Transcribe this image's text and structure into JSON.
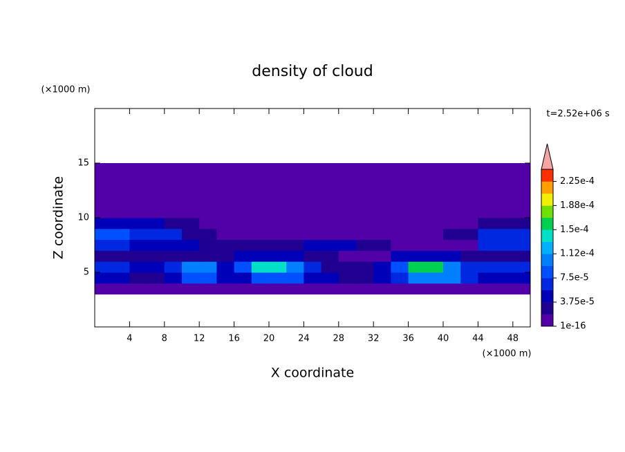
{
  "chart_data": {
    "type": "contour",
    "title": "density of cloud",
    "x_label": "X coordinate",
    "y_label": "Z coordinate",
    "x_unit": "(×1000 m)",
    "y_unit": "(×1000 m)",
    "annotation": "t=2.52e+06 s",
    "xlim": [
      0,
      50
    ],
    "ylim": [
      0,
      20
    ],
    "xticks": [
      4,
      8,
      12,
      16,
      20,
      24,
      28,
      32,
      36,
      40,
      44,
      48
    ],
    "yticks": [
      5,
      10,
      15
    ],
    "x": [
      1,
      3,
      5,
      7,
      9,
      11,
      13,
      15,
      17,
      19,
      21,
      23,
      25,
      27,
      29,
      31,
      33,
      35,
      37,
      39,
      41,
      43,
      45,
      47,
      49
    ],
    "z": [
      3.5,
      4.5,
      5.5,
      6.5,
      7.5,
      8.5,
      9.5,
      10.5,
      11.5,
      12.5,
      13.5,
      14.5
    ],
    "values": [
      [
        1e-05,
        1e-05,
        1e-05,
        1e-05,
        1e-05,
        1e-05,
        1e-05,
        1e-05,
        1e-05,
        1e-05,
        1e-05,
        1e-05,
        1e-05,
        1e-05,
        1e-05,
        1e-05,
        1e-05,
        1e-05,
        1e-05,
        1e-05,
        1e-05,
        1e-05,
        1e-05,
        1e-05,
        1e-05
      ],
      [
        4e-05,
        4e-05,
        3e-05,
        3e-05,
        4e-05,
        8e-05,
        8e-05,
        4e-05,
        5e-05,
        9e-05,
        9e-05,
        9e-05,
        5e-05,
        5e-05,
        2e-05,
        2e-05,
        4e-05,
        7e-05,
        0.0001,
        0.0001,
        0.0001,
        6e-05,
        5e-05,
        5e-05,
        5e-05
      ],
      [
        6e-05,
        6e-05,
        4e-05,
        4e-05,
        6e-05,
        0.00011,
        0.00011,
        5e-05,
        8e-05,
        0.00014,
        0.00014,
        0.00011,
        6e-05,
        2e-05,
        2e-05,
        2e-05,
        5e-05,
        9e-05,
        0.00015,
        0.00015,
        0.0001,
        6e-05,
        6e-05,
        6e-05,
        6e-05
      ],
      [
        2e-05,
        2e-05,
        2e-05,
        2e-05,
        3e-05,
        3e-05,
        3e-05,
        3e-05,
        5e-05,
        5e-05,
        5e-05,
        5e-05,
        3e-05,
        3e-05,
        1e-05,
        1e-05,
        1e-05,
        4e-05,
        4e-05,
        4e-05,
        4e-05,
        3e-05,
        3e-05,
        3e-05,
        3e-05
      ],
      [
        7e-05,
        7e-05,
        4e-05,
        4e-05,
        4e-05,
        4e-05,
        2e-05,
        2e-05,
        3e-05,
        3e-05,
        3e-05,
        3e-05,
        5e-05,
        5e-05,
        5e-05,
        2e-05,
        2e-05,
        1e-05,
        1e-05,
        1e-05,
        1e-05,
        1e-05,
        6e-05,
        6e-05,
        6e-05
      ],
      [
        8e-05,
        8e-05,
        6e-05,
        6e-05,
        6e-05,
        3e-05,
        3e-05,
        1e-05,
        1e-05,
        1e-05,
        1e-05,
        1e-05,
        1e-05,
        1e-05,
        1e-05,
        1e-05,
        1e-05,
        1e-05,
        1e-05,
        1e-05,
        3e-05,
        3e-05,
        7e-05,
        7e-05,
        7e-05
      ],
      [
        4e-05,
        4e-05,
        4e-05,
        4e-05,
        2e-05,
        2e-05,
        1e-05,
        1e-05,
        1e-05,
        1e-05,
        1e-05,
        1e-05,
        1e-05,
        1e-05,
        1e-05,
        1e-05,
        1e-05,
        1e-05,
        1e-05,
        1e-05,
        1e-05,
        1e-05,
        3e-05,
        3e-05,
        3e-05
      ],
      [
        1e-05,
        1e-05,
        1e-05,
        1e-05,
        1e-05,
        1e-05,
        1e-05,
        1e-05,
        1e-05,
        1e-05,
        1e-05,
        1e-05,
        1e-05,
        1e-05,
        1e-05,
        1e-05,
        1e-05,
        1e-05,
        1e-05,
        1e-05,
        1e-05,
        1e-05,
        1e-05,
        1e-05,
        1e-05
      ],
      [
        1e-05,
        1e-05,
        1e-05,
        1e-05,
        1e-05,
        1e-05,
        1e-05,
        1e-05,
        1e-05,
        1e-05,
        1e-05,
        1e-05,
        1e-05,
        1e-05,
        1e-05,
        1e-05,
        1e-05,
        1e-05,
        1e-05,
        1e-05,
        1e-05,
        1e-05,
        1e-05,
        1e-05,
        1e-05
      ],
      [
        1e-05,
        1e-05,
        1e-05,
        1e-05,
        1e-05,
        1e-05,
        1e-05,
        1e-05,
        1e-05,
        1e-05,
        1e-05,
        1e-05,
        1e-05,
        1e-05,
        1e-05,
        1e-05,
        1e-05,
        1e-05,
        1e-05,
        1e-05,
        1e-05,
        1e-05,
        1e-05,
        1e-05,
        1e-05
      ],
      [
        1e-05,
        1e-05,
        1e-05,
        1e-05,
        1e-05,
        1e-05,
        1e-05,
        1e-05,
        1e-05,
        1e-05,
        1e-05,
        1e-05,
        1e-05,
        1e-05,
        1e-05,
        1e-05,
        1e-05,
        1e-05,
        1e-05,
        1e-05,
        1e-05,
        1e-05,
        1e-05,
        1e-05,
        1e-05
      ],
      [
        1e-05,
        1e-05,
        1e-05,
        1e-05,
        1e-05,
        1e-05,
        1e-05,
        1e-05,
        1e-05,
        1e-05,
        1e-05,
        1e-05,
        1e-05,
        1e-05,
        1e-05,
        1e-05,
        1e-05,
        1e-05,
        1e-05,
        1e-05,
        1e-05,
        1e-05,
        1e-05,
        1e-05,
        1e-05
      ]
    ],
    "levels": [
      1e-16,
      1.875e-05,
      3.75e-05,
      5.625e-05,
      7.5e-05,
      9.375e-05,
      0.0001125,
      0.00013125,
      0.00015,
      0.00016875,
      0.0001875,
      0.00020625,
      0.000225,
      0.00024375
    ],
    "colors": [
      "#5200a8",
      "#200090",
      "#0000b8",
      "#0028e0",
      "#0050ff",
      "#0080ff",
      "#00b0ff",
      "#00e0c8",
      "#00d050",
      "#70e000",
      "#f0f000",
      "#ffa000",
      "#ff3000"
    ],
    "extend_color": "#f4a4a4",
    "colorbar_ticks": [
      {
        "value": 1e-16,
        "label": "1e-16"
      },
      {
        "value": 3.75e-05,
        "label": "3.75e-5"
      },
      {
        "value": 7.5e-05,
        "label": "7.5e-5"
      },
      {
        "value": 0.0001125,
        "label": "1.12e-4"
      },
      {
        "value": 0.00015,
        "label": "1.5e-4"
      },
      {
        "value": 0.0001875,
        "label": "1.88e-4"
      },
      {
        "value": 0.000225,
        "label": "2.25e-4"
      }
    ]
  }
}
